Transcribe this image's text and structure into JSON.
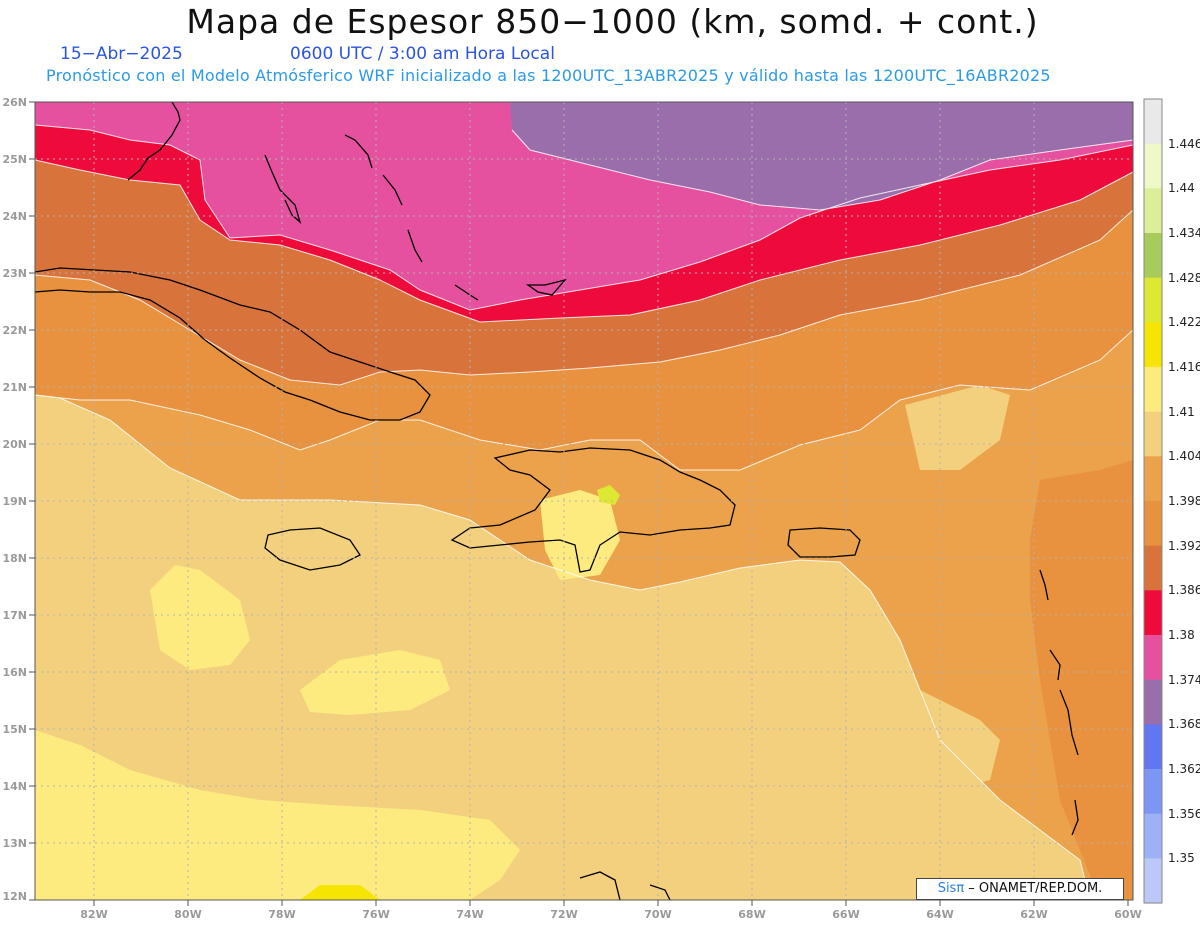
{
  "header": {
    "title": "Mapa de Espesor 850−1000 (km, somd. + cont.)",
    "date": "15−Abr−2025",
    "time": "0600 UTC / 3:00 am Hora Local",
    "subtitle": "Pronóstico con el Modelo Atmósferico WRF inicializado a las 1200UTC_13ABR2025 y válido hasta las  1200UTC_16ABR2025"
  },
  "map": {
    "lat_labels": [
      "26N",
      "25N",
      "24N",
      "23N",
      "22N",
      "21N",
      "20N",
      "19N",
      "18N",
      "17N",
      "16N",
      "15N",
      "14N",
      "13N",
      "12N"
    ],
    "lon_labels": [
      "82W",
      "80W",
      "78W",
      "76W",
      "74W",
      "72W",
      "70W",
      "68W",
      "66W",
      "64W",
      "62W",
      "60W"
    ]
  },
  "colorbar": {
    "labels": [
      "1.446",
      "1.44",
      "1.434",
      "1.428",
      "1.422",
      "1.416",
      "1.41",
      "1.404",
      "1.398",
      "1.392",
      "1.386",
      "1.38",
      "1.374",
      "1.368",
      "1.362",
      "1.356",
      "1.35"
    ],
    "colors": [
      "#e9e9e9",
      "#eef8c8",
      "#dcef98",
      "#a8cc5c",
      "#dde832",
      "#f6e402",
      "#fdeb80",
      "#f3d07d",
      "#eca24a",
      "#e8913e",
      "#d8733b",
      "#ef0a3c",
      "#e6519f",
      "#9a6eaa",
      "#6276f4",
      "#7d95f4",
      "#9cb1f6",
      "#bcc9f8"
    ]
  },
  "credit": {
    "brand": "Sisπ",
    "text": " – ONAMET/REP.DOM."
  }
}
